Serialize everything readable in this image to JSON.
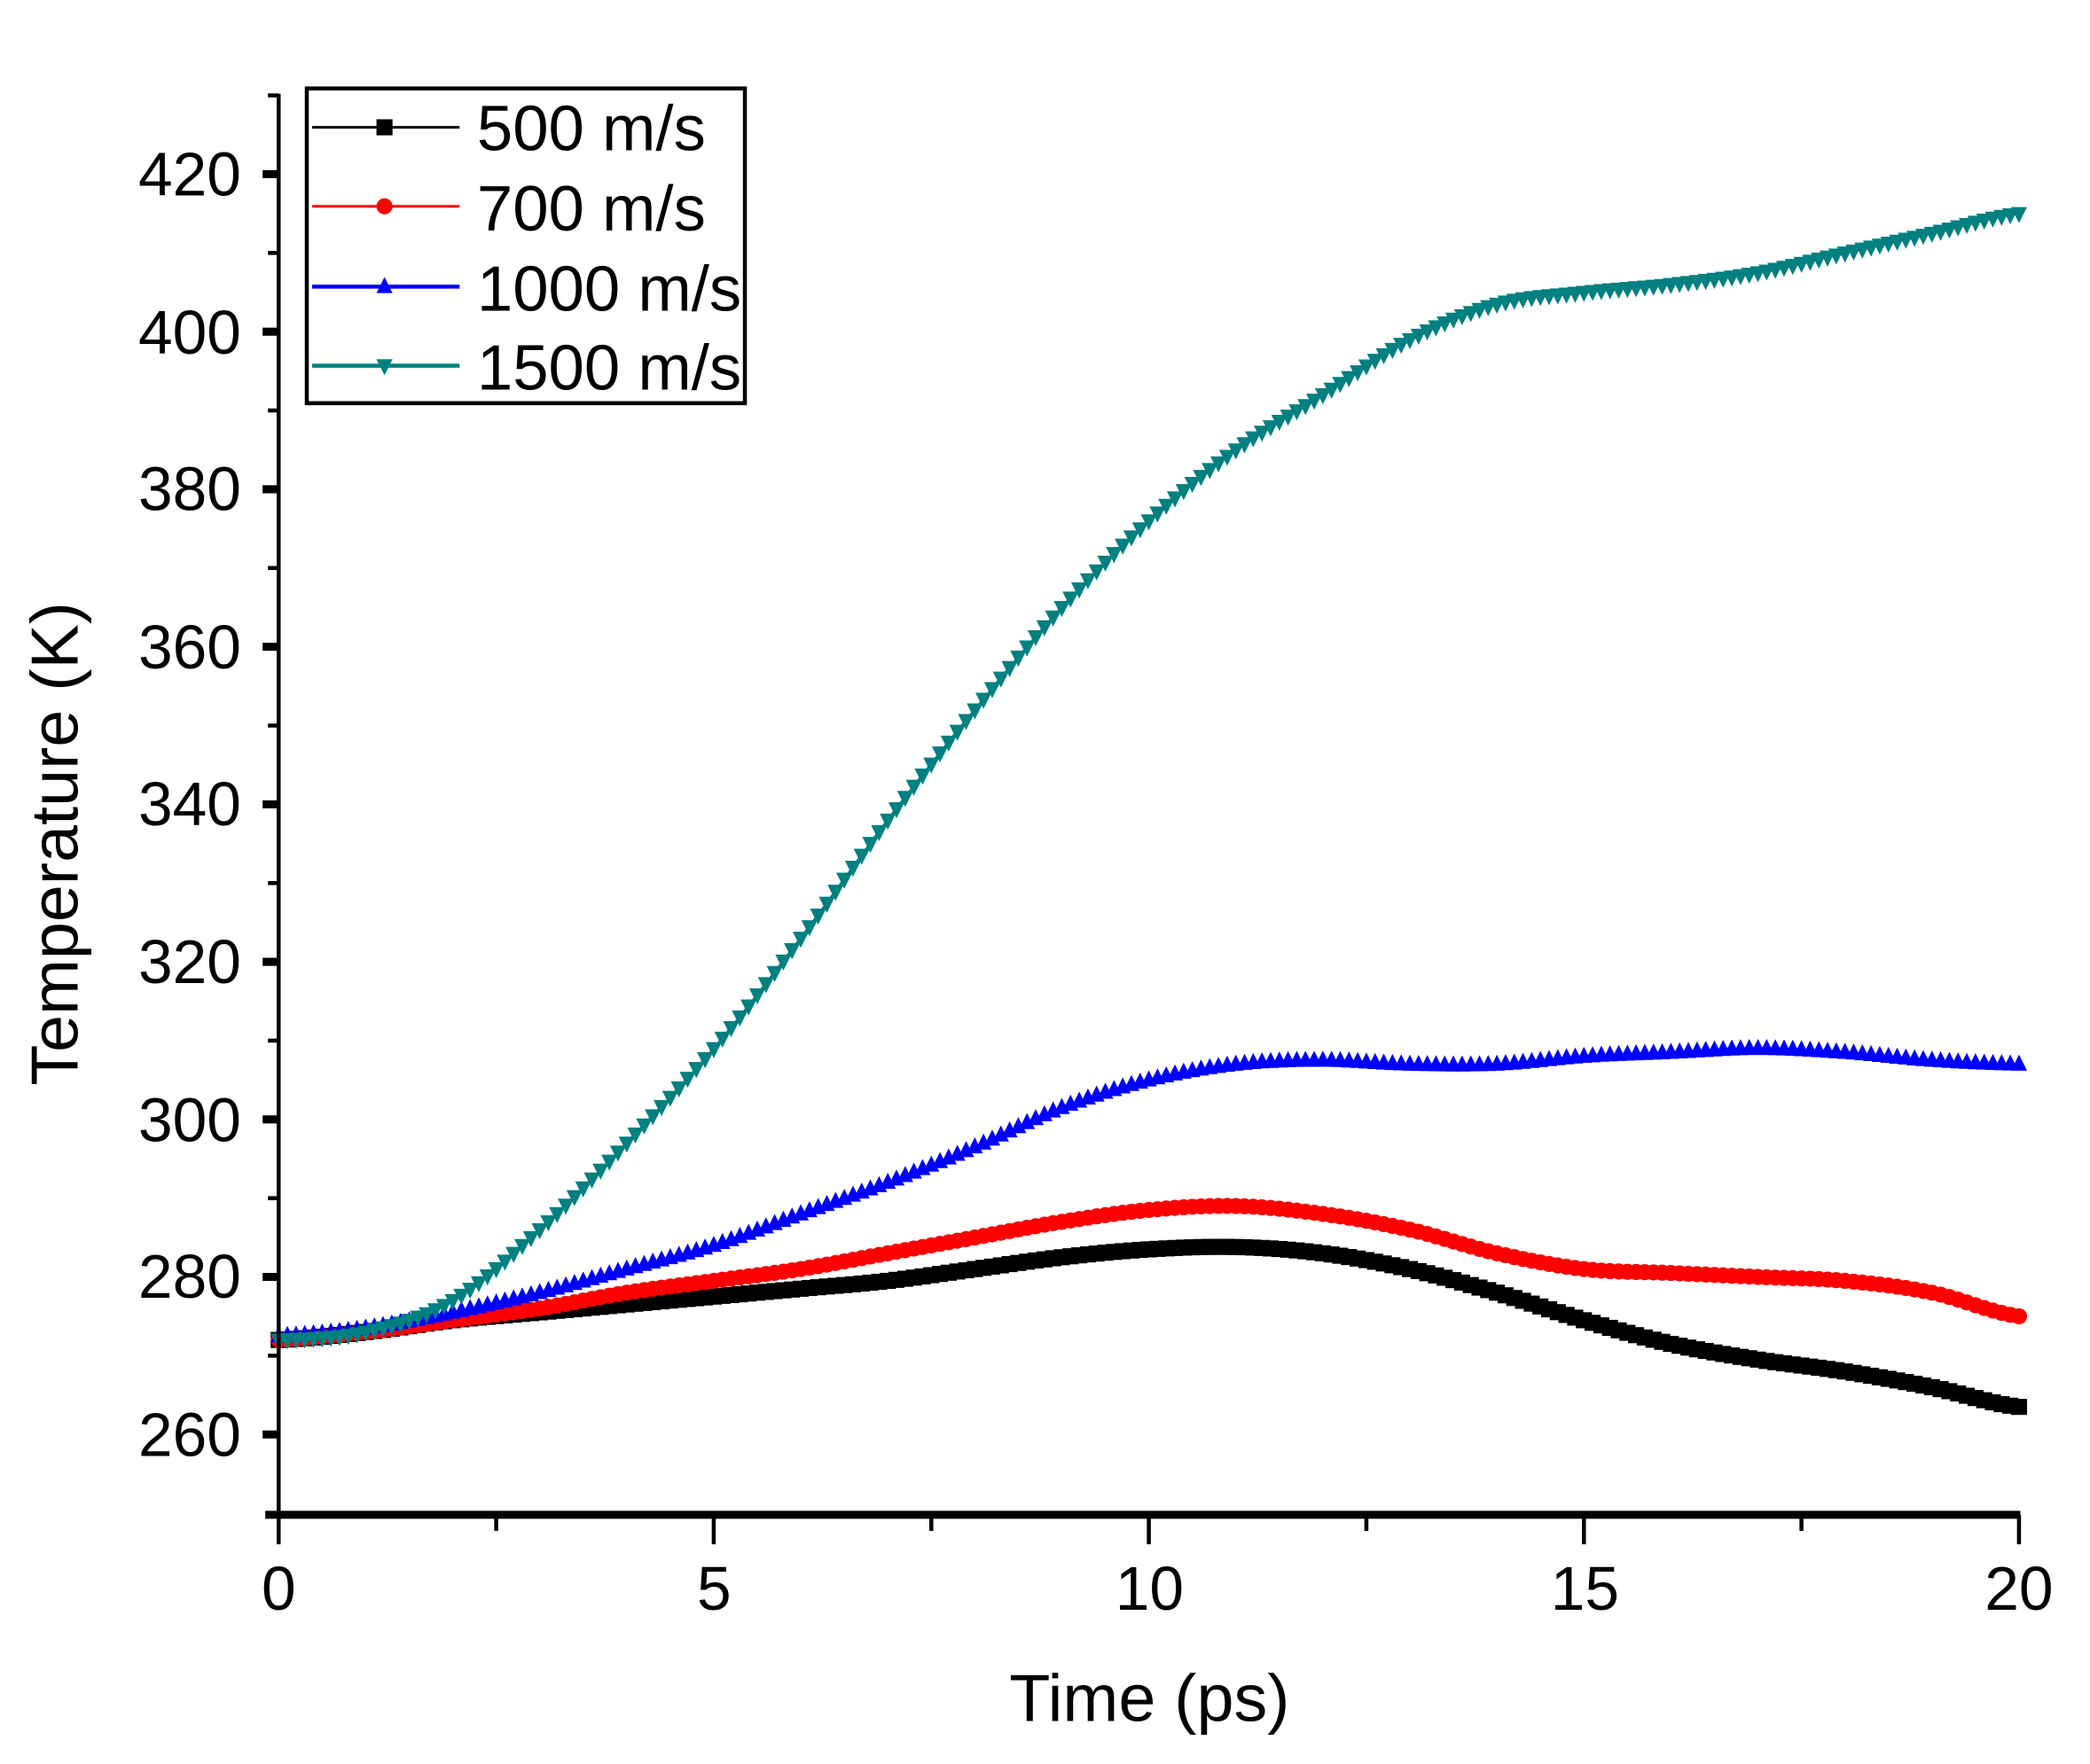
{
  "chart_data": {
    "type": "line",
    "title": "",
    "xlabel": "Time (ps)",
    "ylabel": "Temperature (K)",
    "xlim": [
      0,
      20
    ],
    "ylim": [
      250,
      430
    ],
    "xticks": [
      "0",
      "5",
      "10",
      "15",
      "20"
    ],
    "yticks": [
      "260",
      "280",
      "300",
      "320",
      "340",
      "360",
      "380",
      "400",
      "420"
    ],
    "grid": false,
    "legend_position": "top-left",
    "x": [
      0,
      1,
      2,
      3,
      4,
      5,
      6,
      7,
      8,
      9,
      10,
      11,
      12,
      13,
      14,
      15,
      16,
      17,
      18,
      19,
      20
    ],
    "series": [
      {
        "name": "500 m/s",
        "color": "#000000",
        "marker": "square",
        "values": [
          272,
          273,
          274.5,
          275.5,
          276.5,
          277.5,
          278.5,
          279.5,
          281,
          282.5,
          283.5,
          283.8,
          283,
          281,
          278,
          274.5,
          271.5,
          269.5,
          268,
          266,
          263.5
        ]
      },
      {
        "name": "700 m/s",
        "color": "#ff0000",
        "marker": "circle",
        "values": [
          272,
          273,
          274.5,
          276,
          278,
          279.5,
          281,
          283,
          285,
          287,
          288.5,
          289,
          288,
          286,
          283,
          281,
          280.5,
          280,
          279.5,
          278,
          275
        ]
      },
      {
        "name": "1000 m/s",
        "color": "#0000ff",
        "marker": "triangle-up",
        "values": [
          272.5,
          273.5,
          275.5,
          278,
          281,
          284,
          288,
          292,
          296.5,
          301.5,
          305,
          307,
          307.5,
          307,
          307,
          308,
          308.5,
          309,
          308.5,
          307.5,
          307
        ]
      },
      {
        "name": "1500 m/s",
        "color": "#008080",
        "marker": "triangle-down",
        "values": [
          272,
          273,
          277,
          286,
          297,
          309,
          323,
          338,
          352,
          365,
          376,
          385,
          392,
          399,
          403.5,
          405,
          406,
          407.5,
          410,
          412.5,
          415
        ]
      }
    ]
  }
}
